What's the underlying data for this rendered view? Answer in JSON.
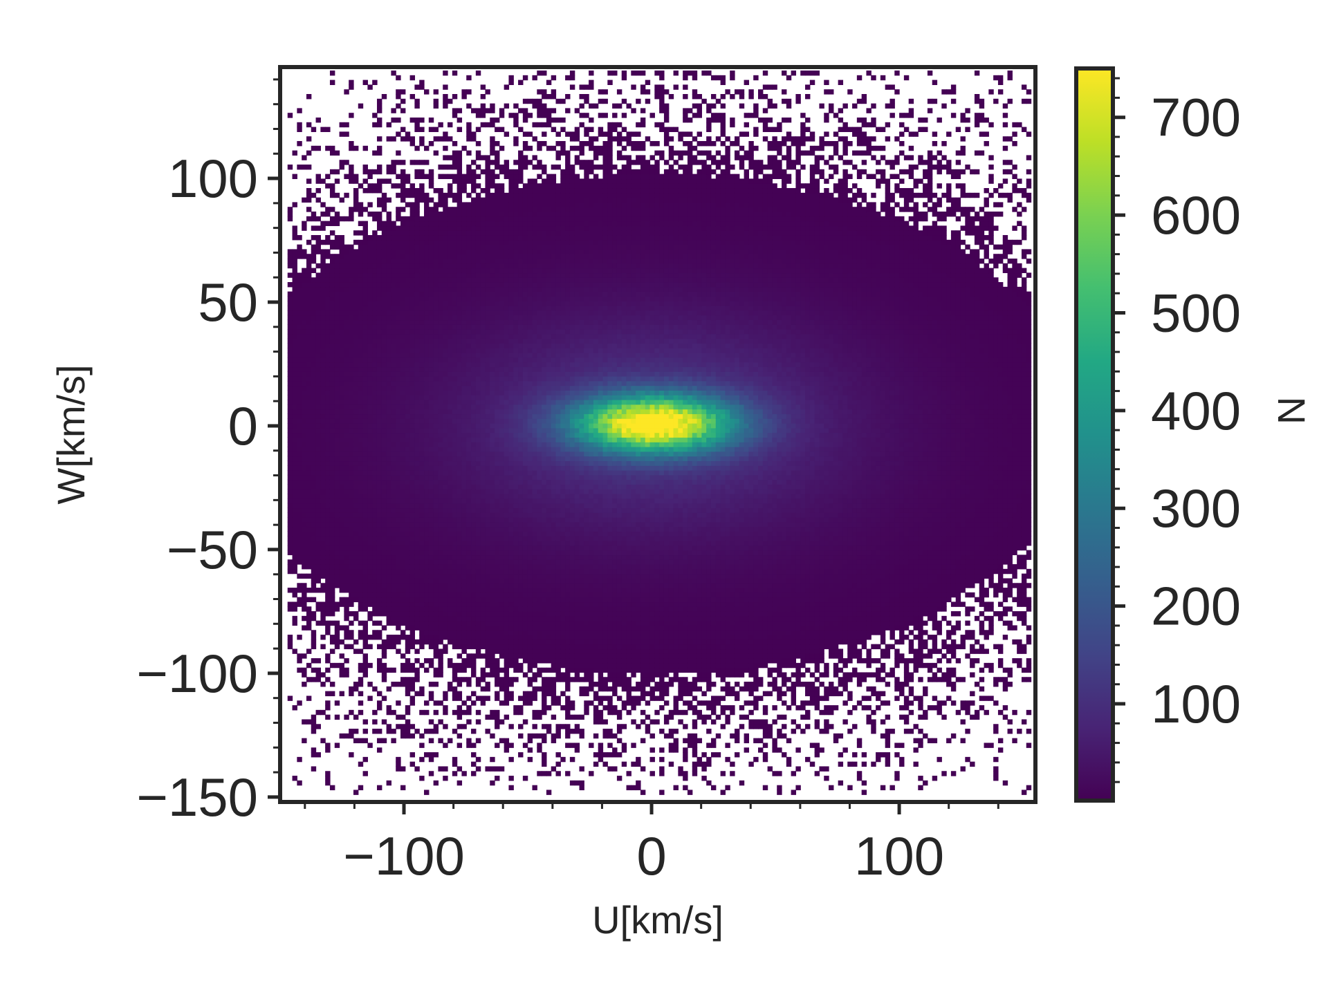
{
  "chart_data": {
    "type": "heatmap",
    "title": "",
    "xlabel": "U[km/s]",
    "ylabel": "W[km/s]",
    "colorbar_label": "N",
    "colormap": "viridis",
    "zero_count_color": "#ffffff",
    "xlim": [
      -150,
      155
    ],
    "ylim": [
      -152,
      145
    ],
    "xticks": [
      -100,
      0,
      100
    ],
    "xtick_labels": [
      "−100",
      "0",
      "100"
    ],
    "yticks": [
      -150,
      -100,
      -50,
      0,
      50,
      100
    ],
    "ytick_labels": [
      "−150",
      "−100",
      "−50",
      "0",
      "50",
      "100"
    ],
    "colorbar_range": [
      1,
      750
    ],
    "colorbar_ticks": [
      100,
      200,
      300,
      400,
      500,
      600,
      700
    ],
    "colorbar_tick_labels": [
      "100",
      "200",
      "300",
      "400",
      "500",
      "600",
      "700"
    ],
    "grid": false,
    "distribution": {
      "description": "2D histogram of stellar velocities; dense elliptical core centered near U=0, W=0",
      "peak_count": 740,
      "peak_center": [
        0,
        0
      ],
      "core_sigma_U": 22,
      "core_sigma_W": 8,
      "halo_sigma_U": 55,
      "halo_sigma_W": 30,
      "approx_nonzero_extent_U": [
        -145,
        150
      ],
      "approx_nonzero_extent_W": [
        -145,
        140
      ]
    }
  }
}
